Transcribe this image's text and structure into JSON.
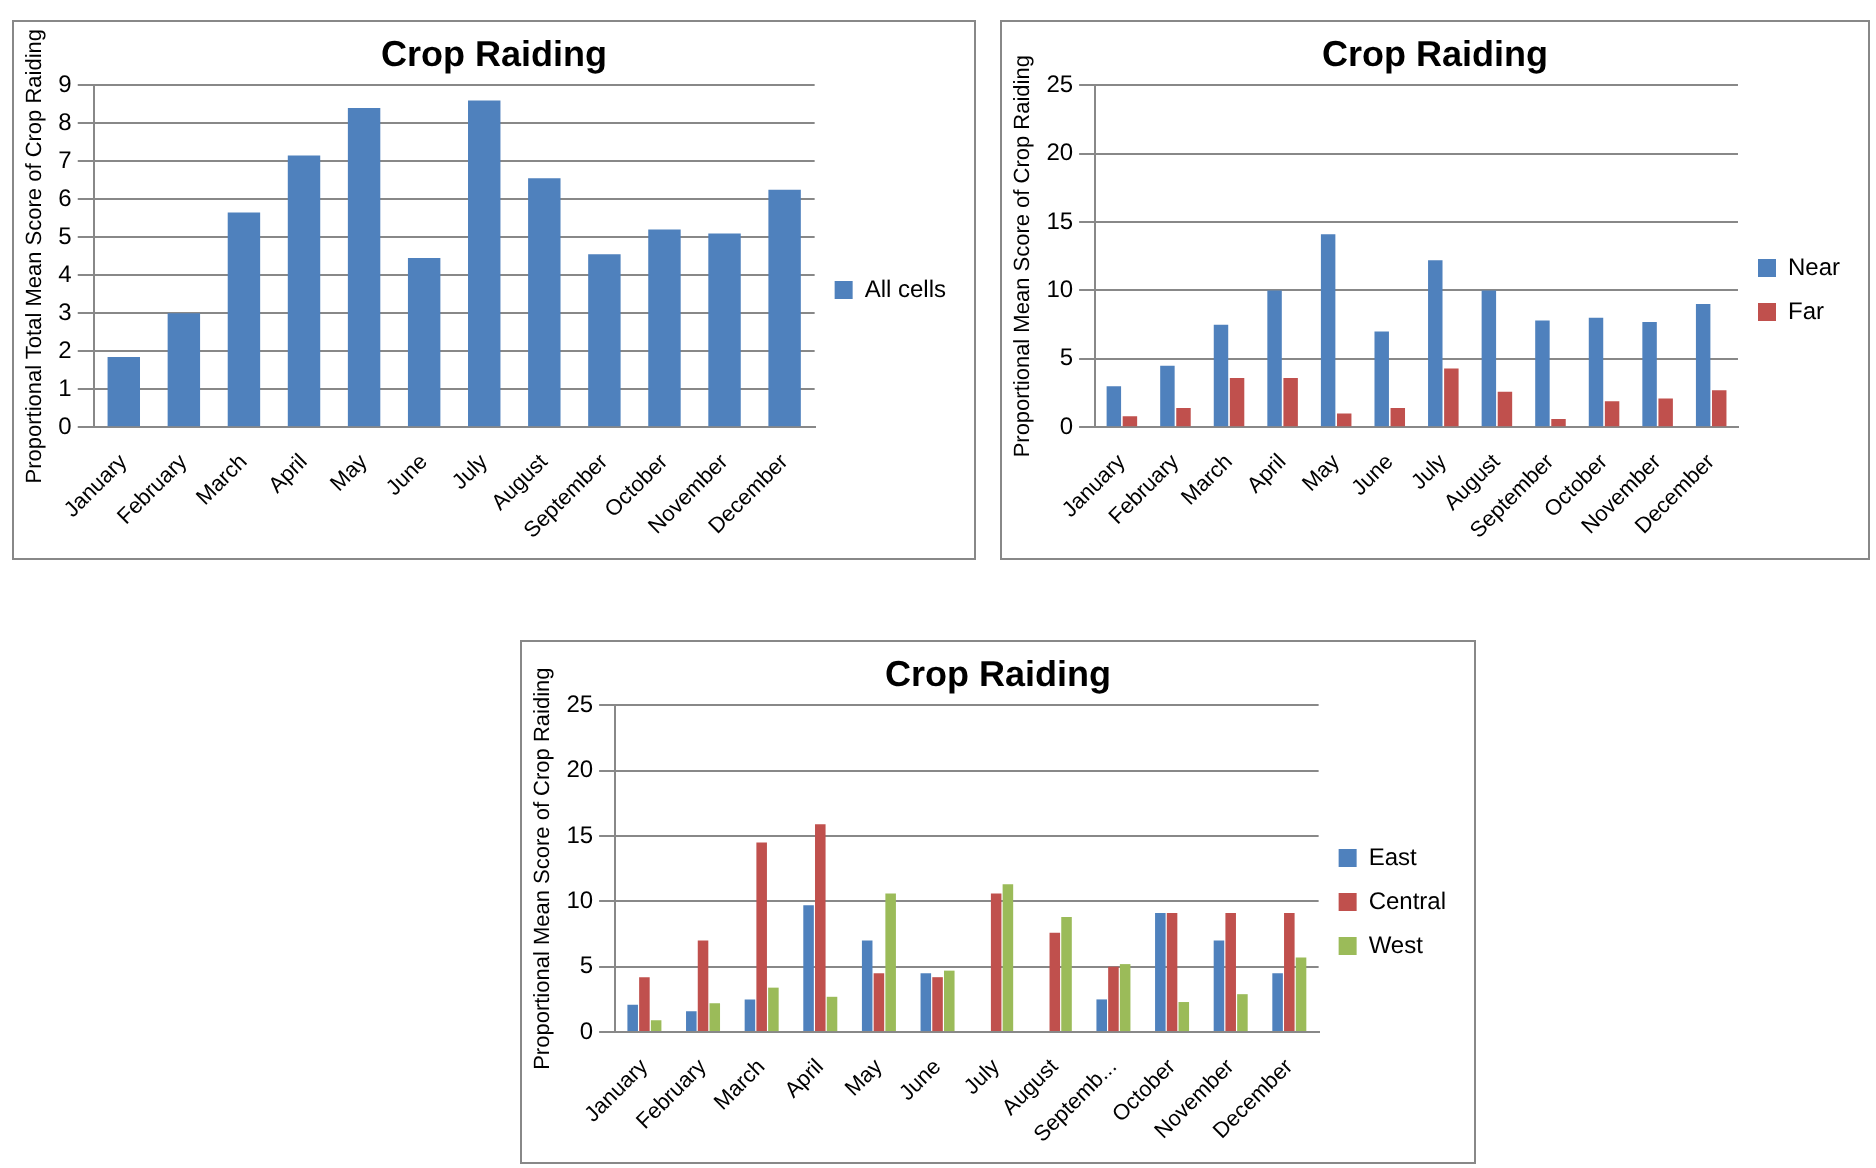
{
  "chart_data": [
    {
      "type": "bar",
      "title": "Crop Raiding",
      "ylabel": "Proportional Total Mean Score of Crop Raiding",
      "categories": [
        "January",
        "February",
        "March",
        "April",
        "May",
        "June",
        "July",
        "August",
        "September",
        "October",
        "November",
        "December"
      ],
      "series": [
        {
          "name": "All cells",
          "color": "#4f81bd",
          "values": [
            1.85,
            3.0,
            5.65,
            7.15,
            8.4,
            4.45,
            8.6,
            6.55,
            4.55,
            5.2,
            5.1,
            6.25
          ]
        }
      ],
      "ylim": [
        0,
        9
      ],
      "yticks": [
        0,
        1,
        2,
        3,
        4,
        5,
        6,
        7,
        8,
        9
      ],
      "grid": "y",
      "legend": "right"
    },
    {
      "type": "bar",
      "title": "Crop Raiding",
      "ylabel": "Proportional Mean Score of Crop Raiding",
      "categories": [
        "January",
        "February",
        "March",
        "April",
        "May",
        "June",
        "July",
        "August",
        "September",
        "October",
        "November",
        "December"
      ],
      "series": [
        {
          "name": "Near",
          "color": "#4f81bd",
          "values": [
            3,
            4.5,
            7.5,
            10,
            14.1,
            7,
            12.2,
            10,
            7.8,
            8,
            7.7,
            9
          ]
        },
        {
          "name": "Far",
          "color": "#c0504d",
          "values": [
            0.8,
            1.4,
            3.6,
            3.6,
            1,
            1.4,
            4.3,
            2.6,
            0.6,
            1.9,
            2.1,
            2.7
          ]
        }
      ],
      "ylim": [
        0,
        25
      ],
      "yticks": [
        0,
        5,
        10,
        15,
        20,
        25
      ],
      "grid": "y",
      "legend": "right"
    },
    {
      "type": "bar",
      "title": "Crop Raiding",
      "ylabel": "Proportional Mean Score of Crop Raiding",
      "categories": [
        "January",
        "February",
        "March",
        "April",
        "May",
        "June",
        "July",
        "August",
        "Septemb...",
        "October",
        "November",
        "December"
      ],
      "series": [
        {
          "name": "East",
          "color": "#4f81bd",
          "values": [
            2.1,
            1.6,
            2.5,
            9.7,
            7,
            4.5,
            0,
            0,
            2.5,
            9.1,
            7,
            4.5
          ]
        },
        {
          "name": "Central",
          "color": "#c0504d",
          "values": [
            4.2,
            7,
            14.5,
            15.9,
            4.5,
            4.2,
            10.6,
            7.6,
            5,
            9.1,
            9.1,
            9.1
          ]
        },
        {
          "name": "West",
          "color": "#9bbb59",
          "values": [
            0.9,
            2.2,
            3.4,
            2.7,
            10.6,
            4.7,
            11.3,
            8.8,
            5.2,
            2.3,
            2.9,
            5.7
          ]
        }
      ],
      "ylim": [
        0,
        25
      ],
      "yticks": [
        0,
        5,
        10,
        15,
        20,
        25
      ],
      "grid": "y",
      "legend": "right"
    }
  ]
}
